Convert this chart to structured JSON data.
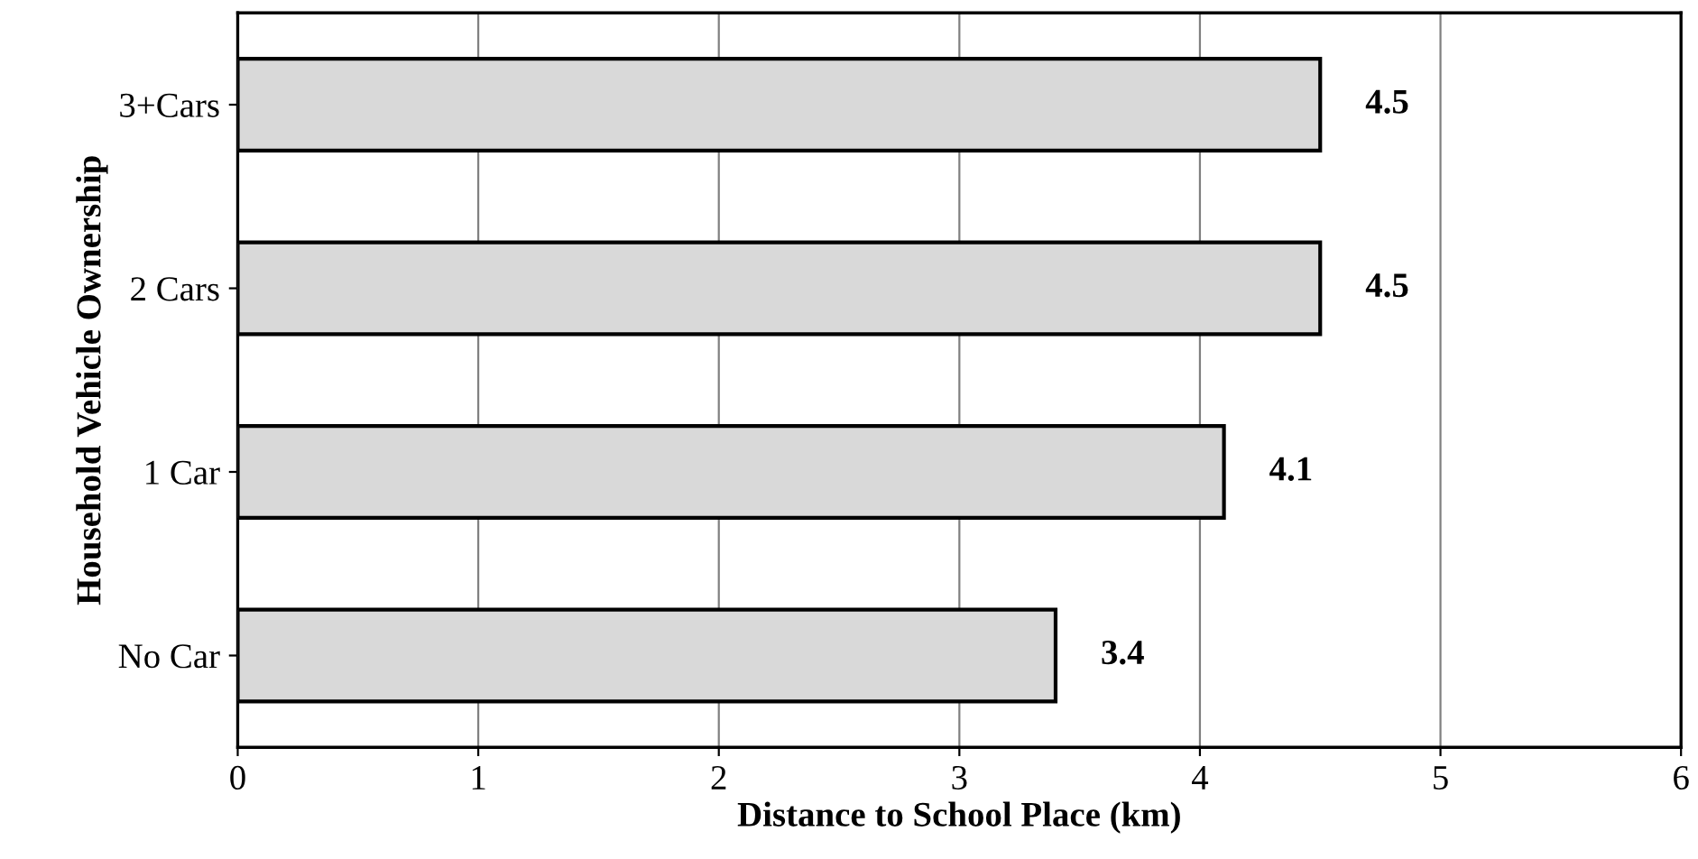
{
  "chart_data": {
    "type": "bar",
    "orientation": "horizontal",
    "xlabel": "Distance to School Place (km)",
    "ylabel": "Household Vehicle Ownership",
    "categories": [
      "3+Cars",
      "2 Cars",
      "1 Car",
      "No Car"
    ],
    "values": [
      4.5,
      4.5,
      4.1,
      3.4
    ],
    "color": "#d9d9d9",
    "data_labels": true,
    "xlim": [
      0,
      6
    ],
    "xticks": [
      0,
      1,
      2,
      3,
      4,
      5,
      6
    ],
    "grid": "x"
  }
}
